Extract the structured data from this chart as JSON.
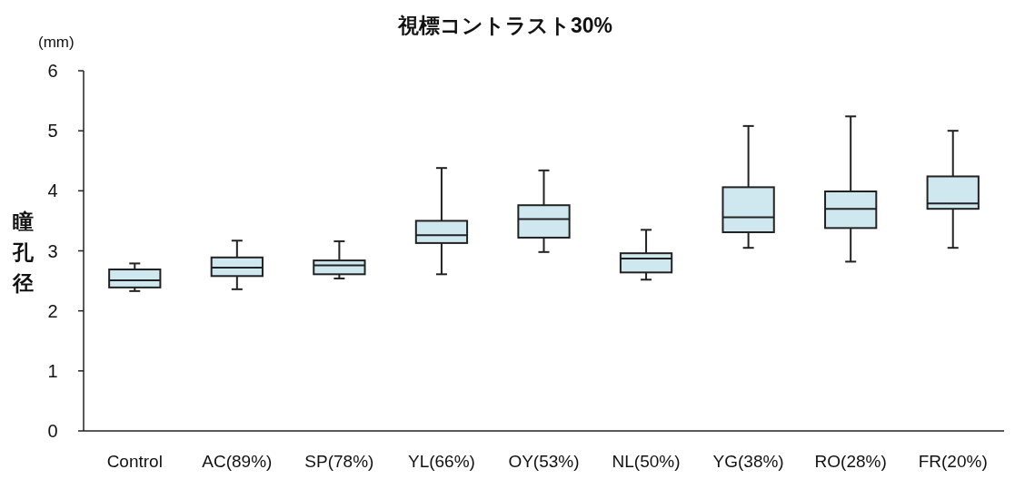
{
  "chart_data": {
    "type": "box",
    "title": "視標コントラスト30%",
    "ylabel": "瞳孔径",
    "annotations": [
      "(mm)"
    ],
    "categories": [
      "Control",
      "AC(89%)",
      "SP(78%)",
      "YL(66%)",
      "OY(53%)",
      "NL(50%)",
      "YG(38%)",
      "RO(28%)",
      "FR(20%)"
    ],
    "color": "#cfe8f0",
    "boxes": [
      {
        "low": 2.33,
        "q1": 2.39,
        "median": 2.51,
        "q3": 2.69,
        "high": 2.79
      },
      {
        "low": 2.36,
        "q1": 2.58,
        "median": 2.72,
        "q3": 2.89,
        "high": 3.17
      },
      {
        "low": 2.54,
        "q1": 2.61,
        "median": 2.76,
        "q3": 2.84,
        "high": 3.16
      },
      {
        "low": 2.61,
        "q1": 3.13,
        "median": 3.26,
        "q3": 3.5,
        "high": 4.38
      },
      {
        "low": 2.98,
        "q1": 3.22,
        "median": 3.53,
        "q3": 3.76,
        "high": 4.34
      },
      {
        "low": 2.52,
        "q1": 2.64,
        "median": 2.87,
        "q3": 2.96,
        "high": 3.35
      },
      {
        "low": 3.05,
        "q1": 3.31,
        "median": 3.56,
        "q3": 4.06,
        "high": 5.08
      },
      {
        "low": 2.82,
        "q1": 3.38,
        "median": 3.7,
        "q3": 3.99,
        "high": 5.24
      },
      {
        "low": 3.05,
        "q1": 3.7,
        "median": 3.79,
        "q3": 4.24,
        "high": 5.0
      }
    ],
    "ylim": [
      0,
      6
    ],
    "yticks": [
      0,
      1,
      2,
      3,
      4,
      5,
      6
    ]
  }
}
